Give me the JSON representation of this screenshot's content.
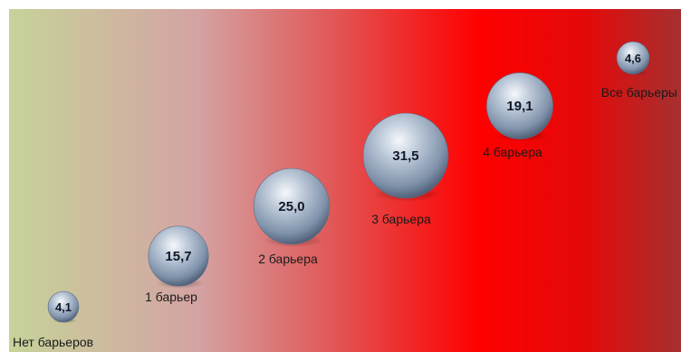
{
  "chart_data": {
    "type": "bubble",
    "categories": [
      "Нет барьеров",
      "1 барьер",
      "2 барьера",
      "3 барьера",
      "4 барьера",
      "Все барьеры"
    ],
    "values": [
      4.1,
      15.7,
      25.0,
      31.5,
      19.1,
      4.6
    ],
    "value_labels": [
      "4,1",
      "15,7",
      "25,0",
      "31,5",
      "19,1",
      "4,6"
    ],
    "background_gradient": [
      "#c6d39a",
      "#d4a3a3",
      "#e15858",
      "#f41e1e",
      "#ff0000",
      "#e30a0a",
      "#a53030"
    ],
    "bubble_color": "#a9b8cc",
    "grid": false,
    "legend": "none"
  }
}
